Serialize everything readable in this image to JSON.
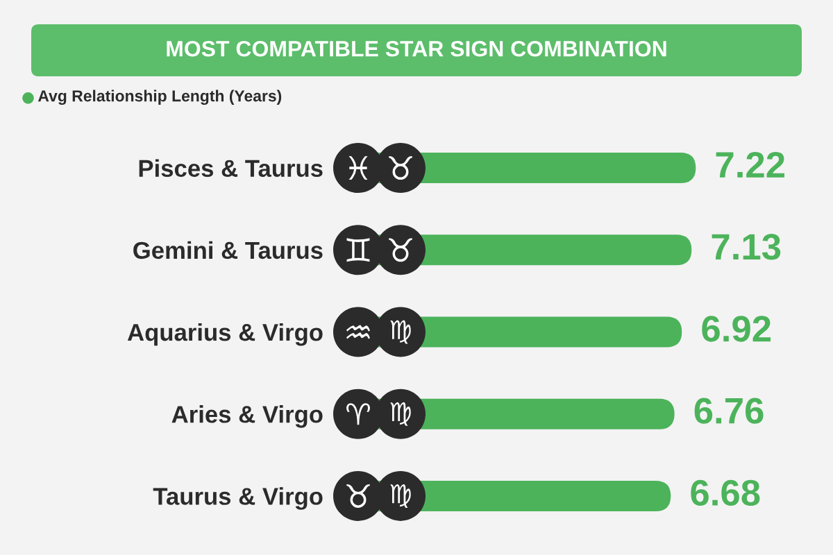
{
  "chart_data": {
    "type": "bar",
    "orientation": "horizontal",
    "title": "MOST COMPATIBLE STAR SIGN COMBINATION",
    "categories": [
      "Pisces & Taurus",
      "Gemini & Taurus",
      "Aquarius & Virgo",
      "Aries & Virgo",
      "Taurus & Virgo"
    ],
    "series": [
      {
        "name": "Avg Relationship Length (Years)",
        "color": "#4cb35b",
        "values": [
          7.22,
          7.13,
          6.92,
          6.76,
          6.68
        ]
      }
    ],
    "data_labels": true,
    "legend": "top left"
  }
}
